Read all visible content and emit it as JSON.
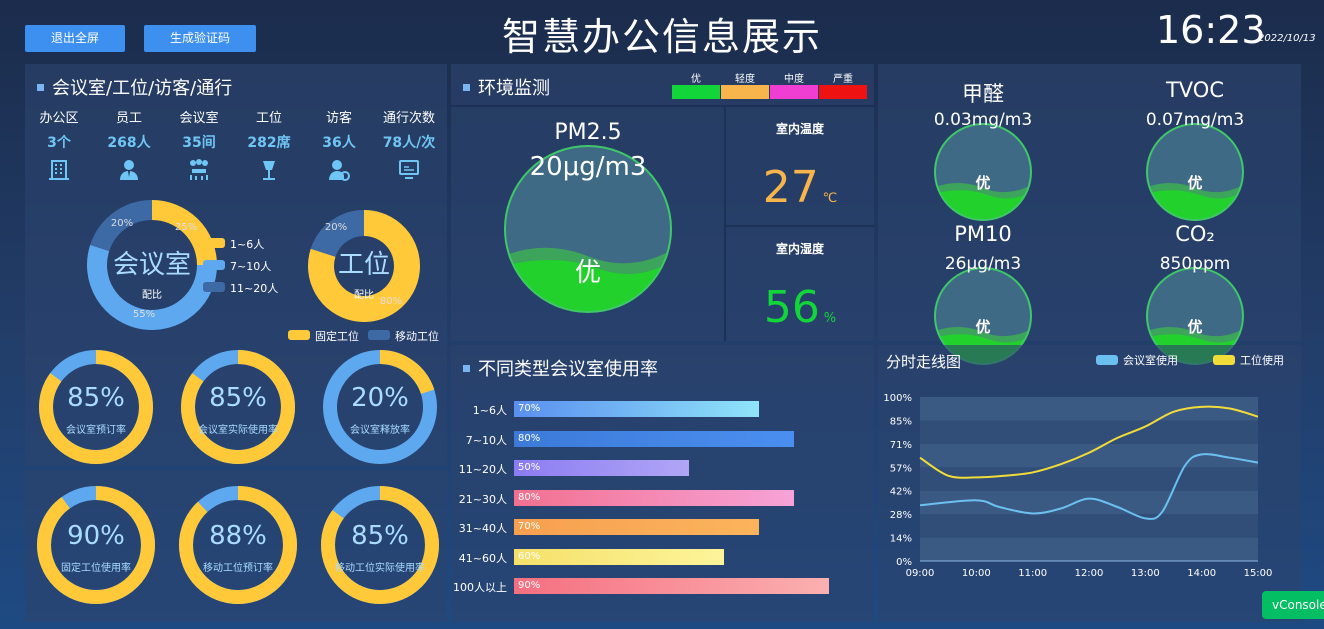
{
  "header": {
    "exit_fullscreen": "退出全屏",
    "gen_captcha": "生成验证码",
    "title": "智慧办公信息展示",
    "time": "16:23",
    "date": "2022/10/13"
  },
  "overview": {
    "title": "会议室/工位/访客/通行",
    "stats": [
      {
        "label": "办公区",
        "value": "3个",
        "icon": "building-icon"
      },
      {
        "label": "员工",
        "value": "268人",
        "icon": "employee-icon"
      },
      {
        "label": "会议室",
        "value": "35间",
        "icon": "meeting-icon"
      },
      {
        "label": "工位",
        "value": "282席",
        "icon": "desk-lamp-icon"
      },
      {
        "label": "访客",
        "value": "36人",
        "icon": "visitor-icon"
      },
      {
        "label": "通行次数",
        "value": "78人/次",
        "icon": "monitor-icon"
      }
    ],
    "room_donut": {
      "center": "会议室",
      "sub": "配比",
      "labels": [
        "25%",
        "20%",
        "55%"
      ],
      "values": [
        25,
        20,
        55
      ],
      "legend": [
        "1~6人",
        "7~10人",
        "11~20人"
      ],
      "colors": [
        "#ffc93a",
        "#3d6aa5",
        "#5ea8ef"
      ]
    },
    "desk_donut": {
      "center": "工位",
      "sub": "配比",
      "labels": [
        "20%",
        "80%"
      ],
      "values": [
        20,
        80
      ],
      "legend": [
        "固定工位",
        "移动工位"
      ],
      "colors": [
        "#ffc93a",
        "#3d6aa5"
      ]
    },
    "rings": [
      {
        "value": "85%",
        "label": "会议室预订率",
        "fraction": 0.85,
        "primary": "#ffc93a"
      },
      {
        "value": "85%",
        "label": "会议室实际使用率",
        "fraction": 0.85,
        "primary": "#ffc93a"
      },
      {
        "value": "20%",
        "label": "会议室释放率",
        "fraction": 0.2,
        "primary": "#ffc93a"
      }
    ]
  },
  "usage": {
    "rings": [
      {
        "value": "90%",
        "label": "固定工位使用率",
        "fraction": 0.9
      },
      {
        "value": "88%",
        "label": "移动工位预订率",
        "fraction": 0.88
      },
      {
        "value": "85%",
        "label": "移动工位实际使用率",
        "fraction": 0.85
      }
    ]
  },
  "environment": {
    "title": "环境监测",
    "levels": [
      {
        "label": "优",
        "color": "#12d53a"
      },
      {
        "label": "轻度",
        "color": "#f7b54b"
      },
      {
        "label": "中度",
        "color": "#f03ed2"
      },
      {
        "label": "严重",
        "color": "#ee1212"
      }
    ],
    "pm25": {
      "name": "PM2.5",
      "value": "20μg/m3",
      "grade": "优"
    },
    "temperature": {
      "label": "室内温度",
      "value": "27",
      "unit": "℃",
      "color": "#f7b54b"
    },
    "humidity": {
      "label": "室内湿度",
      "value": "56",
      "unit": "%",
      "color": "#12d53a"
    }
  },
  "air": [
    {
      "name": "甲醛",
      "value": "0.03mg/m3",
      "grade": "优"
    },
    {
      "name": "TVOC",
      "value": "0.07mg/m3",
      "grade": "优"
    },
    {
      "name": "PM10",
      "value": "26μg/m3",
      "grade": "优"
    },
    {
      "name": "CO₂",
      "value": "850ppm",
      "grade": "优"
    }
  ],
  "room_rate": {
    "title": "不同类型会议室使用率",
    "bars": [
      {
        "label": "1~6人",
        "value": 70,
        "text": "70%",
        "from": "#5a8ff0",
        "to": "#8fe4f8"
      },
      {
        "label": "7~10人",
        "value": 80,
        "text": "80%",
        "from": "#3d7ad8",
        "to": "#4a8ff0"
      },
      {
        "label": "11~20人",
        "value": 50,
        "text": "50%",
        "from": "#8b7cf2",
        "to": "#b0a6f6"
      },
      {
        "label": "21~30人",
        "value": 80,
        "text": "80%",
        "from": "#f2708f",
        "to": "#f6a3d8"
      },
      {
        "label": "31~40人",
        "value": 70,
        "text": "70%",
        "from": "#f7a04f",
        "to": "#fbb45c"
      },
      {
        "label": "41~60人",
        "value": 60,
        "text": "60%",
        "from": "#f5e06a",
        "to": "#fdf49a"
      },
      {
        "label": "100人以上",
        "value": 90,
        "text": "90%",
        "from": "#f56f80",
        "to": "#fbb0b0"
      }
    ]
  },
  "chart_data": {
    "type": "line",
    "title": "分时走线图",
    "x": [
      "09:00",
      "10:00",
      "11:00",
      "12:00",
      "13:00",
      "14:00",
      "15:00"
    ],
    "y_ticks": [
      "0%",
      "14%",
      "28%",
      "42%",
      "57%",
      "71%",
      "85%",
      "100%"
    ],
    "ylim": [
      0,
      100
    ],
    "series": [
      {
        "name": "会议室使用",
        "color": "#6cc0ef",
        "points": [
          [
            9.0,
            34
          ],
          [
            10.0,
            37
          ],
          [
            10.4,
            33
          ],
          [
            11.0,
            29
          ],
          [
            11.5,
            32
          ],
          [
            12.0,
            38
          ],
          [
            12.5,
            33
          ],
          [
            13.0,
            26
          ],
          [
            13.3,
            30
          ],
          [
            13.7,
            58
          ],
          [
            14.0,
            65
          ],
          [
            14.5,
            63
          ],
          [
            15.0,
            60
          ]
        ]
      },
      {
        "name": "工位使用",
        "color": "#f2dc3a",
        "points": [
          [
            9.0,
            63
          ],
          [
            9.5,
            52
          ],
          [
            10.0,
            51
          ],
          [
            10.5,
            52
          ],
          [
            11.0,
            54
          ],
          [
            11.5,
            59
          ],
          [
            12.0,
            66
          ],
          [
            12.5,
            75
          ],
          [
            13.0,
            82
          ],
          [
            13.5,
            91
          ],
          [
            14.0,
            94
          ],
          [
            14.5,
            93
          ],
          [
            15.0,
            88
          ]
        ]
      }
    ]
  },
  "vconsole": "vConsole"
}
